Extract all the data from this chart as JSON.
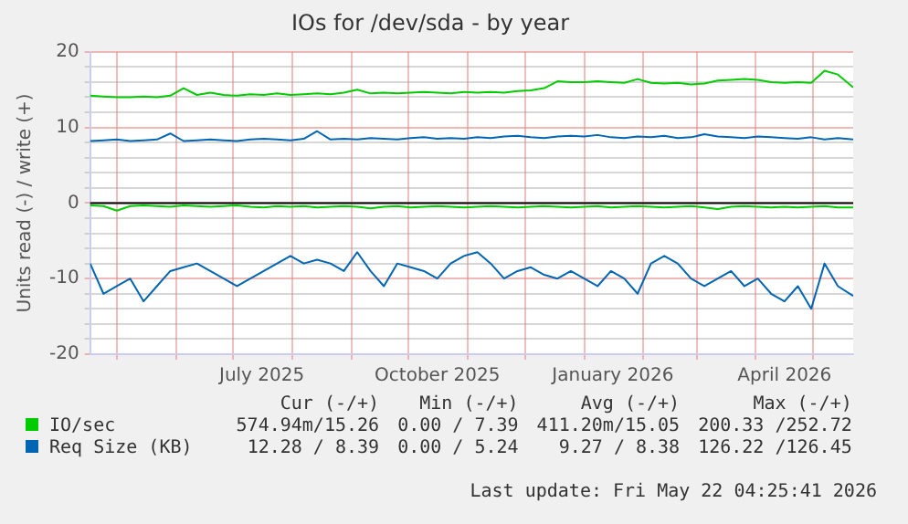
{
  "chart_data": {
    "type": "line",
    "title": "IOs for /dev/sda - by year",
    "ylabel": "Units read (-) / write (+)",
    "x": [
      "2025-04-17",
      "2025-04-24",
      "2025-05-01",
      "2025-05-08",
      "2025-05-15",
      "2025-05-22",
      "2025-05-29",
      "2025-06-05",
      "2025-06-12",
      "2025-06-19",
      "2025-06-26",
      "2025-07-03",
      "2025-07-10",
      "2025-07-17",
      "2025-07-24",
      "2025-07-31",
      "2025-08-07",
      "2025-08-14",
      "2025-08-21",
      "2025-08-28",
      "2025-09-04",
      "2025-09-11",
      "2025-09-18",
      "2025-09-25",
      "2025-10-02",
      "2025-10-09",
      "2025-10-16",
      "2025-10-23",
      "2025-10-30",
      "2025-11-06",
      "2025-11-13",
      "2025-11-20",
      "2025-11-27",
      "2025-12-04",
      "2025-12-11",
      "2025-12-18",
      "2025-12-25",
      "2026-01-01",
      "2026-01-08",
      "2026-01-15",
      "2026-01-22",
      "2026-01-29",
      "2026-02-05",
      "2026-02-12",
      "2026-02-19",
      "2026-02-26",
      "2026-03-05",
      "2026-03-12",
      "2026-03-19",
      "2026-03-26",
      "2026-04-02",
      "2026-04-09",
      "2026-04-16",
      "2026-04-23",
      "2026-04-30",
      "2026-05-07",
      "2026-05-14",
      "2026-05-22"
    ],
    "series": [
      {
        "name": "IO/sec",
        "color": "#00cc00",
        "values": [
          14.2,
          14.1,
          14.0,
          14.0,
          14.1,
          14.0,
          14.2,
          15.2,
          14.3,
          14.6,
          14.3,
          14.2,
          14.4,
          14.3,
          14.5,
          14.3,
          14.4,
          14.5,
          14.4,
          14.6,
          15.0,
          14.5,
          14.6,
          14.5,
          14.6,
          14.7,
          14.6,
          14.5,
          14.7,
          14.6,
          14.7,
          14.6,
          14.8,
          14.9,
          15.2,
          16.1,
          16.0,
          16.0,
          16.1,
          16.0,
          15.9,
          16.4,
          15.9,
          15.8,
          15.9,
          15.7,
          15.8,
          16.2,
          16.3,
          16.4,
          16.3,
          16.0,
          15.9,
          16.0,
          15.9,
          17.5,
          17.0,
          15.3
        ]
      },
      {
        "name": "Req Size (KB)",
        "color": "#0066b3",
        "values": [
          8.2,
          8.3,
          8.4,
          8.2,
          8.3,
          8.4,
          9.2,
          8.2,
          8.3,
          8.4,
          8.3,
          8.2,
          8.4,
          8.5,
          8.4,
          8.3,
          8.5,
          9.5,
          8.4,
          8.5,
          8.4,
          8.6,
          8.5,
          8.4,
          8.6,
          8.7,
          8.5,
          8.6,
          8.5,
          8.7,
          8.6,
          8.8,
          8.9,
          8.7,
          8.6,
          8.8,
          8.9,
          8.8,
          9.0,
          8.7,
          8.6,
          8.8,
          8.7,
          8.9,
          8.6,
          8.7,
          9.1,
          8.8,
          8.7,
          8.6,
          8.8,
          8.7,
          8.6,
          8.5,
          8.7,
          8.4,
          8.6,
          8.4
        ]
      },
      {
        "color": "#00cc00",
        "values": [
          -0.3,
          -0.4,
          -1.0,
          -0.4,
          -0.3,
          -0.4,
          -0.5,
          -0.3,
          -0.4,
          -0.5,
          -0.4,
          -0.3,
          -0.5,
          -0.6,
          -0.4,
          -0.5,
          -0.4,
          -0.6,
          -0.5,
          -0.4,
          -0.5,
          -0.7,
          -0.5,
          -0.4,
          -0.6,
          -0.5,
          -0.4,
          -0.5,
          -0.6,
          -0.5,
          -0.4,
          -0.5,
          -0.6,
          -0.5,
          -0.4,
          -0.5,
          -0.6,
          -0.5,
          -0.4,
          -0.6,
          -0.5,
          -0.4,
          -0.5,
          -0.6,
          -0.5,
          -0.4,
          -0.6,
          -0.8,
          -0.5,
          -0.4,
          -0.5,
          -0.6,
          -0.5,
          -0.6,
          -0.5,
          -0.4,
          -0.6,
          -0.6
        ]
      },
      {
        "color": "#0066b3",
        "values": [
          -8,
          -12,
          -11,
          -10,
          -13,
          -11,
          -9,
          -8.5,
          -8,
          -9,
          -10,
          -11,
          -10,
          -9,
          -8,
          -7,
          -8,
          -7.5,
          -8,
          -9,
          -6.5,
          -9,
          -11,
          -8,
          -8.5,
          -9,
          -10,
          -8,
          -7,
          -6.5,
          -8,
          -10,
          -9,
          -8.5,
          -9.5,
          -10,
          -9,
          -10,
          -11,
          -9,
          -10,
          -12,
          -8,
          -7,
          -8,
          -10,
          -11,
          -10,
          -9,
          -11,
          -10,
          -12,
          -13,
          -11,
          -14,
          -8,
          -11,
          -12.3
        ]
      }
    ],
    "xlim": [
      "2025-04-17",
      "2026-05-22"
    ],
    "xticks": [
      {
        "value": "2025-05-01",
        "label": null
      },
      {
        "value": "2025-06-01",
        "label": null
      },
      {
        "value": "2025-07-01",
        "label": null
      },
      {
        "value": "2025-07-16",
        "label": "July 2025"
      },
      {
        "value": "2025-08-01",
        "label": null
      },
      {
        "value": "2025-09-01",
        "label": null
      },
      {
        "value": "2025-10-01",
        "label": null
      },
      {
        "value": "2025-10-16",
        "label": "October 2025"
      },
      {
        "value": "2025-11-01",
        "label": null
      },
      {
        "value": "2025-12-01",
        "label": null
      },
      {
        "value": "2026-01-01",
        "label": null
      },
      {
        "value": "2026-01-16",
        "label": "January 2026"
      },
      {
        "value": "2026-02-01",
        "label": null
      },
      {
        "value": "2026-03-01",
        "label": null
      },
      {
        "value": "2026-04-01",
        "label": null
      },
      {
        "value": "2026-04-16",
        "label": "April 2026"
      },
      {
        "value": "2026-05-01",
        "label": null
      }
    ],
    "ylim": [
      -20,
      20
    ],
    "yticks": [
      -20,
      {
        "value": -18,
        "label": null
      },
      {
        "value": -16,
        "label": null
      },
      {
        "value": -14,
        "label": null
      },
      {
        "value": -12,
        "label": null
      },
      -10,
      {
        "value": -8,
        "label": null
      },
      {
        "value": -6,
        "label": null
      },
      {
        "value": -4,
        "label": null
      },
      {
        "value": -2,
        "label": null
      },
      0,
      {
        "value": 2,
        "label": null
      },
      {
        "value": 4,
        "label": null
      },
      {
        "value": 6,
        "label": null
      },
      {
        "value": 8,
        "label": null
      },
      10,
      {
        "value": 12,
        "label": null
      },
      {
        "value": 14,
        "label": null
      },
      {
        "value": 16,
        "label": null
      },
      {
        "value": 18,
        "label": null
      },
      20
    ],
    "ref_lines": [
      {
        "axis": "y",
        "value": 0,
        "color": "#000000"
      }
    ],
    "grid": true,
    "legend": "bottom",
    "marker": "none",
    "line_style": "solid",
    "annotations": [
      "Cur (-/+)",
      "Min (-/+)",
      "Avg (-/+)",
      "Max (-/+)",
      "574.94m/15.26",
      "0.00 / 7.39",
      "411.20m/15.05",
      "200.33 /252.72",
      "12.28 / 8.39",
      "0.00 / 5.24",
      "9.27 / 8.38",
      "126.22 /126.45",
      "Last update: Fri May 22 04:25:41 2026"
    ]
  }
}
